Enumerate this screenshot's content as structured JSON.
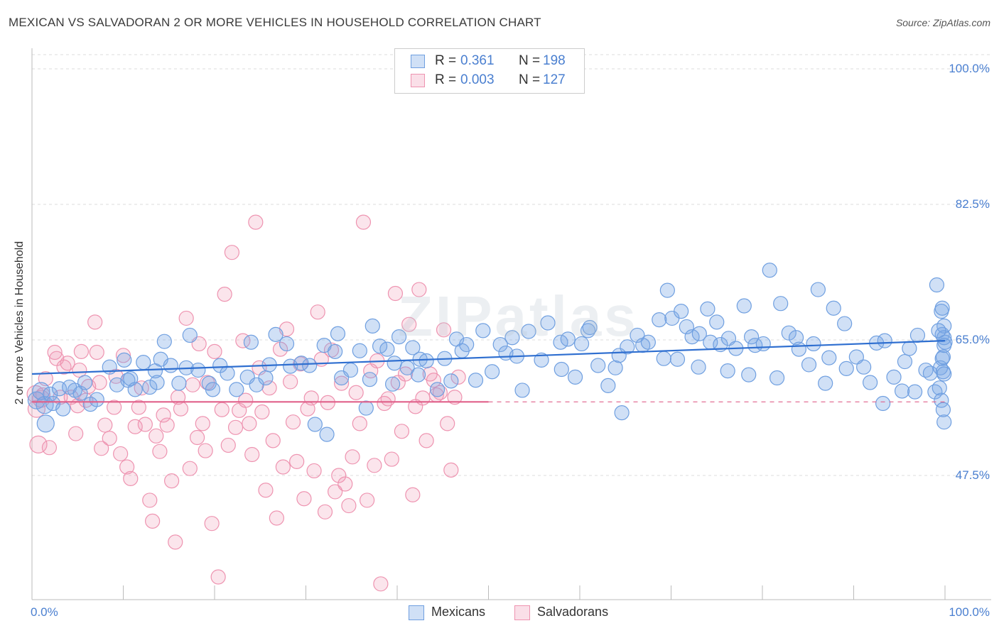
{
  "title": "MEXICAN VS SALVADORAN 2 OR MORE VEHICLES IN HOUSEHOLD CORRELATION CHART",
  "source": "Source: ZipAtlas.com",
  "watermark": "ZIPatlas",
  "colors": {
    "mexicans": "#6f9fe0",
    "mexicans_fill": "rgba(120,165,230,0.35)",
    "mexicans_line": "#2f6fd0",
    "salvadorans": "#ee93b0",
    "salvadorans_fill": "rgba(240,150,180,0.25)",
    "salvadorans_line": "#e0608a",
    "tick_text": "#4a7fd0"
  },
  "legend": {
    "rows": [
      {
        "label": "R =",
        "r": "0.361",
        "n_label": "N =",
        "n": "198",
        "series": "Mexicans"
      },
      {
        "label": "R =",
        "r": "0.003",
        "n_label": "N =",
        "n": "127",
        "series": "Salvadorans"
      }
    ],
    "bottom": [
      "Mexicans",
      "Salvadorans"
    ]
  },
  "chart_data": {
    "type": "scatter",
    "title": "MEXICAN VS SALVADORAN 2 OR MORE VEHICLES IN HOUSEHOLD CORRELATION CHART",
    "xlabel": "",
    "ylabel": "2 or more Vehicles in Household",
    "xlim": [
      0,
      100
    ],
    "ylim": [
      31.5,
      102
    ],
    "x_tick_labels": [
      "0.0%",
      "100.0%"
    ],
    "y_ticks": [
      47.5,
      65.0,
      82.5,
      100.0
    ],
    "y_tick_labels": [
      "47.5%",
      "65.0%",
      "82.5%",
      "100.0%"
    ],
    "grid": true,
    "legend_position": "top-center",
    "series": [
      {
        "name": "Mexicans",
        "r": 0.361,
        "n": 198,
        "trend": {
          "x": [
            0,
            100
          ],
          "y": [
            60.6,
            64.9
          ],
          "dashed_from": null
        },
        "points": [
          [
            0.5,
            57.2
          ],
          [
            1.0,
            58.4
          ],
          [
            1.4,
            56.6
          ],
          [
            1.5,
            54.2
          ],
          [
            2.0,
            58.0
          ],
          [
            2.3,
            56.8
          ],
          [
            3.0,
            58.7
          ],
          [
            3.4,
            56.1
          ],
          [
            4.1,
            58.9
          ],
          [
            4.7,
            58.5
          ],
          [
            5.3,
            58.1
          ],
          [
            5.8,
            59.5
          ],
          [
            6.4,
            56.7
          ],
          [
            7.1,
            57.3
          ],
          [
            8.5,
            61.5
          ],
          [
            9.3,
            59.2
          ],
          [
            10.1,
            62.4
          ],
          [
            10.5,
            59.8
          ],
          [
            10.8,
            60.0
          ],
          [
            11.3,
            58.6
          ],
          [
            12.2,
            62.1
          ],
          [
            12.9,
            58.9
          ],
          [
            13.5,
            61.0
          ],
          [
            13.7,
            59.5
          ],
          [
            14.1,
            62.5
          ],
          [
            14.5,
            64.8
          ],
          [
            15.2,
            61.7
          ],
          [
            16.1,
            59.4
          ],
          [
            16.9,
            61.4
          ],
          [
            17.3,
            65.6
          ],
          [
            18.2,
            61.1
          ],
          [
            19.4,
            59.4
          ],
          [
            19.8,
            58.6
          ],
          [
            20.6,
            61.7
          ],
          [
            21.4,
            60.7
          ],
          [
            22.4,
            58.6
          ],
          [
            23.6,
            60.2
          ],
          [
            24.0,
            64.7
          ],
          [
            24.6,
            59.2
          ],
          [
            25.6,
            60.1
          ],
          [
            26.0,
            61.8
          ],
          [
            26.7,
            65.7
          ],
          [
            27.9,
            64.5
          ],
          [
            28.3,
            61.6
          ],
          [
            29.5,
            62.0
          ],
          [
            30.4,
            61.7
          ],
          [
            31.0,
            54.1
          ],
          [
            32.0,
            64.3
          ],
          [
            32.3,
            52.8
          ],
          [
            33.2,
            63.5
          ],
          [
            33.5,
            65.8
          ],
          [
            33.9,
            60.1
          ],
          [
            34.9,
            61.1
          ],
          [
            35.9,
            63.6
          ],
          [
            36.6,
            56.2
          ],
          [
            37.0,
            59.9
          ],
          [
            37.3,
            66.8
          ],
          [
            38.1,
            64.2
          ],
          [
            38.9,
            63.8
          ],
          [
            39.5,
            59.3
          ],
          [
            39.7,
            62.0
          ],
          [
            40.2,
            65.4
          ],
          [
            41.1,
            61.4
          ],
          [
            41.7,
            64.0
          ],
          [
            42.3,
            60.5
          ],
          [
            42.5,
            62.5
          ],
          [
            43.2,
            62.3
          ],
          [
            44.4,
            58.6
          ],
          [
            45.2,
            62.6
          ],
          [
            45.9,
            59.7
          ],
          [
            46.5,
            65.1
          ],
          [
            47.1,
            63.6
          ],
          [
            47.6,
            64.4
          ],
          [
            48.6,
            59.8
          ],
          [
            49.4,
            66.2
          ],
          [
            50.4,
            60.9
          ],
          [
            51.3,
            64.4
          ],
          [
            51.9,
            63.3
          ],
          [
            52.6,
            65.3
          ],
          [
            53.1,
            62.9
          ],
          [
            53.7,
            58.5
          ],
          [
            54.4,
            66.1
          ],
          [
            55.8,
            62.4
          ],
          [
            56.5,
            67.2
          ],
          [
            57.9,
            64.7
          ],
          [
            58.0,
            61.2
          ],
          [
            58.7,
            65.1
          ],
          [
            59.5,
            60.2
          ],
          [
            60.2,
            64.5
          ],
          [
            60.9,
            66.2
          ],
          [
            61.1,
            66.6
          ],
          [
            62.0,
            61.7
          ],
          [
            63.1,
            59.1
          ],
          [
            63.9,
            61.4
          ],
          [
            64.3,
            63.0
          ],
          [
            64.6,
            55.6
          ],
          [
            65.2,
            64.1
          ],
          [
            66.3,
            65.6
          ],
          [
            66.9,
            64.3
          ],
          [
            67.5,
            64.7
          ],
          [
            68.7,
            67.6
          ],
          [
            69.2,
            62.6
          ],
          [
            69.6,
            71.4
          ],
          [
            70.1,
            67.8
          ],
          [
            70.7,
            62.5
          ],
          [
            71.1,
            68.7
          ],
          [
            71.7,
            66.7
          ],
          [
            72.3,
            65.4
          ],
          [
            73.0,
            61.5
          ],
          [
            73.1,
            65.8
          ],
          [
            74.0,
            69.0
          ],
          [
            74.3,
            64.7
          ],
          [
            75.0,
            67.3
          ],
          [
            75.4,
            64.4
          ],
          [
            76.2,
            61.0
          ],
          [
            76.3,
            65.2
          ],
          [
            77.1,
            63.9
          ],
          [
            78.0,
            69.4
          ],
          [
            78.8,
            65.4
          ],
          [
            78.5,
            60.5
          ],
          [
            79.2,
            64.3
          ],
          [
            80.1,
            64.5
          ],
          [
            80.8,
            74.0
          ],
          [
            81.6,
            60.1
          ],
          [
            82.0,
            69.7
          ],
          [
            82.9,
            65.9
          ],
          [
            83.7,
            65.3
          ],
          [
            84.0,
            63.8
          ],
          [
            85.1,
            61.8
          ],
          [
            85.6,
            64.5
          ],
          [
            86.1,
            71.5
          ],
          [
            86.9,
            59.4
          ],
          [
            87.3,
            62.7
          ],
          [
            87.8,
            69.1
          ],
          [
            89.0,
            67.1
          ],
          [
            89.2,
            61.3
          ],
          [
            90.3,
            62.8
          ],
          [
            91.1,
            61.5
          ],
          [
            91.8,
            59.5
          ],
          [
            92.5,
            64.6
          ],
          [
            93.2,
            56.8
          ],
          [
            93.4,
            64.9
          ],
          [
            94.4,
            60.2
          ],
          [
            95.3,
            58.4
          ],
          [
            95.6,
            62.2
          ],
          [
            96.1,
            63.9
          ],
          [
            96.7,
            58.3
          ],
          [
            97.0,
            65.6
          ],
          [
            97.9,
            61.1
          ],
          [
            98.4,
            60.7
          ],
          [
            98.9,
            58.3
          ],
          [
            99.4,
            58.8
          ],
          [
            99.7,
            65.7
          ],
          [
            99.9,
            54.4
          ],
          [
            99.6,
            57.2
          ],
          [
            99.7,
            62.6
          ],
          [
            99.8,
            60.9
          ],
          [
            99.9,
            66.8
          ],
          [
            100.0,
            64.7
          ],
          [
            99.8,
            56.0
          ],
          [
            99.9,
            65.3
          ],
          [
            99.6,
            68.7
          ],
          [
            99.5,
            61.4
          ],
          [
            99.3,
            66.2
          ],
          [
            99.1,
            72.1
          ],
          [
            99.7,
            69.1
          ],
          [
            99.8,
            62.8
          ],
          [
            99.9,
            60.6
          ],
          [
            99.9,
            64.3
          ]
        ]
      },
      {
        "name": "Salvadorans",
        "r": 0.003,
        "n": 127,
        "trend": {
          "x": [
            0,
            100
          ],
          "y": [
            57.0,
            57.0
          ],
          "dashed_from": 50
        },
        "points": [
          [
            0.4,
            58.0
          ],
          [
            0.5,
            56.1
          ],
          [
            0.7,
            51.5
          ],
          [
            1.0,
            57.4
          ],
          [
            1.2,
            57.9
          ],
          [
            1.5,
            60.0
          ],
          [
            1.9,
            51.1
          ],
          [
            2.5,
            63.4
          ],
          [
            2.7,
            62.6
          ],
          [
            3.1,
            57.6
          ],
          [
            3.5,
            61.5
          ],
          [
            3.9,
            62.0
          ],
          [
            4.3,
            57.6
          ],
          [
            4.8,
            52.9
          ],
          [
            5.0,
            56.5
          ],
          [
            5.2,
            61.1
          ],
          [
            5.4,
            63.5
          ],
          [
            5.9,
            57.2
          ],
          [
            6.2,
            59.0
          ],
          [
            6.9,
            67.3
          ],
          [
            7.1,
            63.4
          ],
          [
            7.4,
            59.5
          ],
          [
            7.6,
            51.0
          ],
          [
            8.0,
            54.0
          ],
          [
            8.5,
            52.3
          ],
          [
            9.0,
            56.3
          ],
          [
            9.2,
            60.3
          ],
          [
            9.7,
            50.3
          ],
          [
            10.0,
            63.0
          ],
          [
            10.4,
            48.6
          ],
          [
            10.8,
            47.1
          ],
          [
            11.3,
            53.8
          ],
          [
            11.7,
            56.3
          ],
          [
            12.0,
            58.8
          ],
          [
            12.4,
            54.1
          ],
          [
            12.9,
            44.3
          ],
          [
            13.2,
            41.6
          ],
          [
            13.6,
            52.6
          ],
          [
            14.0,
            50.6
          ],
          [
            14.4,
            55.3
          ],
          [
            14.8,
            54.0
          ],
          [
            15.3,
            46.8
          ],
          [
            15.7,
            38.9
          ],
          [
            16.0,
            57.6
          ],
          [
            16.3,
            56.1
          ],
          [
            16.9,
            67.8
          ],
          [
            17.3,
            48.4
          ],
          [
            17.6,
            59.2
          ],
          [
            18.1,
            52.4
          ],
          [
            18.3,
            64.5
          ],
          [
            18.7,
            54.2
          ],
          [
            19.0,
            50.7
          ],
          [
            19.2,
            59.5
          ],
          [
            19.7,
            41.3
          ],
          [
            20.0,
            63.5
          ],
          [
            20.4,
            34.4
          ],
          [
            20.8,
            56.0
          ],
          [
            21.1,
            70.9
          ],
          [
            21.5,
            51.4
          ],
          [
            21.9,
            76.3
          ],
          [
            22.3,
            53.7
          ],
          [
            22.7,
            55.9
          ],
          [
            23.1,
            64.9
          ],
          [
            23.4,
            57.2
          ],
          [
            23.8,
            54.2
          ],
          [
            24.1,
            50.2
          ],
          [
            24.5,
            80.2
          ],
          [
            24.9,
            61.4
          ],
          [
            25.2,
            55.7
          ],
          [
            25.6,
            45.6
          ],
          [
            26.0,
            58.8
          ],
          [
            26.4,
            52.0
          ],
          [
            26.8,
            42.0
          ],
          [
            27.2,
            63.8
          ],
          [
            27.5,
            48.6
          ],
          [
            27.9,
            66.4
          ],
          [
            28.3,
            59.6
          ],
          [
            28.6,
            54.4
          ],
          [
            29.0,
            49.3
          ],
          [
            29.4,
            61.9
          ],
          [
            29.8,
            44.5
          ],
          [
            30.2,
            56.1
          ],
          [
            30.6,
            57.5
          ],
          [
            30.9,
            48.1
          ],
          [
            31.3,
            68.6
          ],
          [
            31.7,
            62.5
          ],
          [
            32.1,
            42.8
          ],
          [
            32.4,
            56.9
          ],
          [
            32.8,
            63.7
          ],
          [
            33.2,
            45.4
          ],
          [
            33.6,
            47.5
          ],
          [
            33.9,
            59.4
          ],
          [
            34.3,
            46.4
          ],
          [
            34.7,
            43.6
          ],
          [
            35.1,
            49.9
          ],
          [
            35.5,
            58.2
          ],
          [
            35.9,
            54.2
          ],
          [
            36.3,
            80.2
          ],
          [
            36.7,
            44.3
          ],
          [
            37.1,
            61.0
          ],
          [
            37.5,
            48.8
          ],
          [
            37.8,
            62.3
          ],
          [
            38.2,
            33.5
          ],
          [
            38.6,
            56.8
          ],
          [
            39.0,
            57.4
          ],
          [
            39.4,
            49.6
          ],
          [
            39.8,
            71.0
          ],
          [
            40.1,
            59.5
          ],
          [
            40.5,
            53.2
          ],
          [
            40.9,
            60.6
          ],
          [
            41.3,
            67.0
          ],
          [
            41.7,
            45.0
          ],
          [
            42.0,
            56.4
          ],
          [
            42.4,
            71.5
          ],
          [
            42.8,
            57.5
          ],
          [
            43.2,
            52.0
          ],
          [
            43.6,
            60.6
          ],
          [
            44.0,
            59.8
          ],
          [
            44.3,
            57.9
          ],
          [
            44.7,
            58.2
          ],
          [
            45.1,
            66.3
          ],
          [
            45.5,
            54.2
          ],
          [
            45.9,
            48.2
          ],
          [
            46.3,
            57.6
          ],
          [
            46.7,
            60.2
          ]
        ]
      }
    ]
  }
}
